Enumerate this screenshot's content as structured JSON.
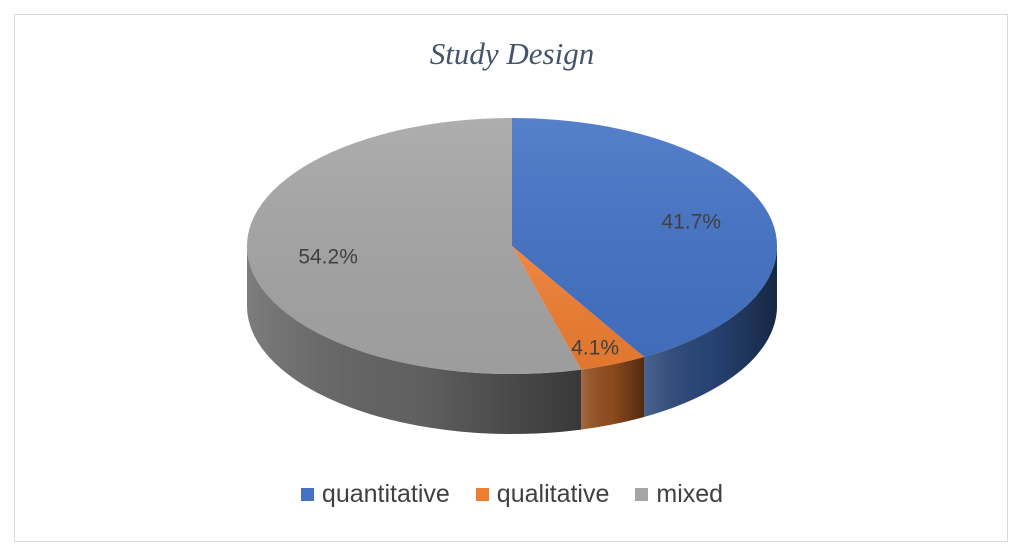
{
  "chart_data": {
    "type": "pie",
    "title": "Study Design",
    "categories": [
      "quantitative",
      "qualitative",
      "mixed"
    ],
    "values": [
      41.7,
      4.1,
      54.2
    ],
    "labels": [
      "41.7%",
      "4.1%",
      "54.2%"
    ],
    "colors": [
      "#4472c4",
      "#ed7d31",
      "#a5a5a5"
    ],
    "legend_position": "bottom",
    "style": "3d"
  }
}
